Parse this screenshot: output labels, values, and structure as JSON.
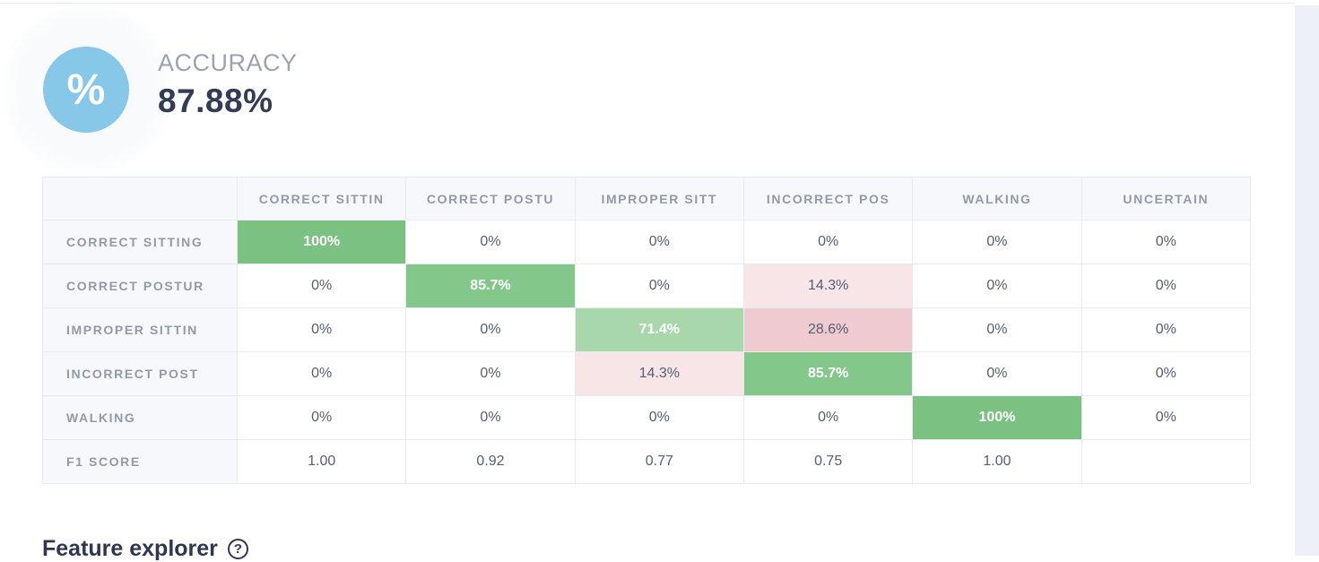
{
  "accuracy_panel": {
    "icon_glyph": "%",
    "label": "ACCURACY",
    "value": "87.88%"
  },
  "confusion_matrix": {
    "corner_header": "",
    "column_headers": [
      "CORRECT SITTIN",
      "CORRECT POSTU",
      "IMPROPER SITT",
      "INCORRECT POS",
      "WALKING",
      "UNCERTAIN"
    ],
    "rows": [
      {
        "label": "CORRECT SITTING",
        "cells": [
          {
            "text": "100%",
            "bg": "green_full",
            "emphasis": true
          },
          {
            "text": "0%"
          },
          {
            "text": "0%"
          },
          {
            "text": "0%"
          },
          {
            "text": "0%"
          },
          {
            "text": "0%"
          }
        ]
      },
      {
        "label": "CORRECT POSTUR",
        "cells": [
          {
            "text": "0%"
          },
          {
            "text": "85.7%",
            "bg": "green_mid",
            "emphasis": true
          },
          {
            "text": "0%"
          },
          {
            "text": "14.3%",
            "bg": "pink_light"
          },
          {
            "text": "0%"
          },
          {
            "text": "0%"
          }
        ]
      },
      {
        "label": "IMPROPER SITTIN",
        "cells": [
          {
            "text": "0%"
          },
          {
            "text": "0%"
          },
          {
            "text": "71.4%",
            "bg": "green_light",
            "emphasis": true
          },
          {
            "text": "28.6%",
            "bg": "pink_mid"
          },
          {
            "text": "0%"
          },
          {
            "text": "0%"
          }
        ]
      },
      {
        "label": "INCORRECT POST",
        "cells": [
          {
            "text": "0%"
          },
          {
            "text": "0%"
          },
          {
            "text": "14.3%",
            "bg": "pink_light"
          },
          {
            "text": "85.7%",
            "bg": "green_mid",
            "emphasis": true
          },
          {
            "text": "0%"
          },
          {
            "text": "0%"
          }
        ]
      },
      {
        "label": "WALKING",
        "cells": [
          {
            "text": "0%"
          },
          {
            "text": "0%"
          },
          {
            "text": "0%"
          },
          {
            "text": "0%"
          },
          {
            "text": "100%",
            "bg": "green_full",
            "emphasis": true
          },
          {
            "text": "0%"
          }
        ]
      },
      {
        "label": "F1 SCORE",
        "cells": [
          {
            "text": "1.00"
          },
          {
            "text": "0.92"
          },
          {
            "text": "0.77"
          },
          {
            "text": "0.75"
          },
          {
            "text": "1.00"
          },
          {
            "text": ""
          }
        ]
      }
    ]
  },
  "feature_explorer": {
    "title": "Feature explorer",
    "help_glyph": "?"
  },
  "colors": {
    "accent_blue": "#87c8e8",
    "green_full": "#7ac182",
    "green_mid": "#84c78b",
    "green_light": "#a8d7ab",
    "pink_light": "#f7e5e8",
    "pink_mid": "#efcad0",
    "header_bg": "#f7f8fb",
    "border": "#e9ebef",
    "label_text": "#929aa7",
    "cell_text": "#555e73",
    "navy": "#333c55",
    "muted_label": "#9aa3b0",
    "heading_navy": "#2f3750",
    "gutter": "#eef0f7",
    "divider": "#e8eaed"
  }
}
